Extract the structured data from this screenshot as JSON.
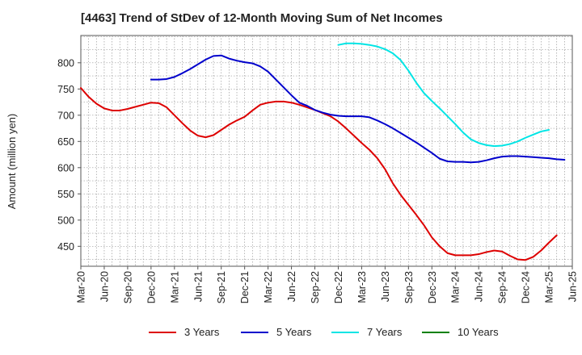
{
  "chart_data": {
    "type": "line",
    "title": "[4463]  Trend of StDev of 12-Month Moving Sum of Net Incomes",
    "ylabel": "Amount (million yen)",
    "xlabel": "",
    "ylim": [
      412,
      852
    ],
    "yticks": [
      450,
      500,
      550,
      600,
      650,
      700,
      750,
      800
    ],
    "xtick_labels": [
      "Mar-20",
      "Jun-20",
      "Sep-20",
      "Dec-20",
      "Mar-21",
      "Jun-21",
      "Sep-21",
      "Dec-21",
      "Mar-22",
      "Jun-22",
      "Sep-22",
      "Dec-22",
      "Mar-23",
      "Jun-23",
      "Sep-23",
      "Dec-23",
      "Mar-24",
      "Jun-24",
      "Sep-24",
      "Dec-24",
      "Mar-25",
      "Jun-25"
    ],
    "grid": true,
    "legend_position": "bottom",
    "series": [
      {
        "name": "3 Years",
        "color": "#dd0000",
        "start_index": 0,
        "values": [
          752,
          735,
          722,
          713,
          709,
          709,
          712,
          716,
          720,
          724,
          723,
          715,
          700,
          685,
          671,
          661,
          658,
          662,
          672,
          682,
          690,
          697,
          709,
          720,
          724,
          726,
          726,
          724,
          720,
          715,
          710,
          704,
          698,
          688,
          675,
          661,
          647,
          634,
          618,
          597,
          570,
          548,
          529,
          510,
          490,
          467,
          450,
          437,
          433,
          433,
          433,
          435,
          439,
          442,
          440,
          432,
          425,
          424,
          430,
          442,
          457,
          471
        ]
      },
      {
        "name": "5 Years",
        "color": "#0000cc",
        "start_index": 9,
        "values": [
          768,
          768,
          769,
          773,
          780,
          788,
          797,
          806,
          813,
          814,
          808,
          804,
          801,
          799,
          793,
          783,
          768,
          753,
          738,
          724,
          718,
          710,
          705,
          701,
          699,
          698,
          698,
          698,
          696,
          690,
          683,
          675,
          666,
          657,
          648,
          638,
          628,
          617,
          612,
          611,
          611,
          610,
          611,
          614,
          618,
          621,
          622,
          622,
          621,
          620,
          619,
          618,
          616,
          615
        ]
      },
      {
        "name": "7 Years",
        "color": "#00e5e5",
        "start_index": 33,
        "values": [
          834,
          837,
          837,
          836,
          834,
          831,
          826,
          818,
          805,
          785,
          762,
          742,
          727,
          713,
          698,
          683,
          667,
          654,
          647,
          643,
          641,
          642,
          645,
          650,
          657,
          663,
          669,
          672
        ]
      },
      {
        "name": "10 Years",
        "color": "#008000",
        "start_index": 0,
        "values": []
      }
    ]
  }
}
